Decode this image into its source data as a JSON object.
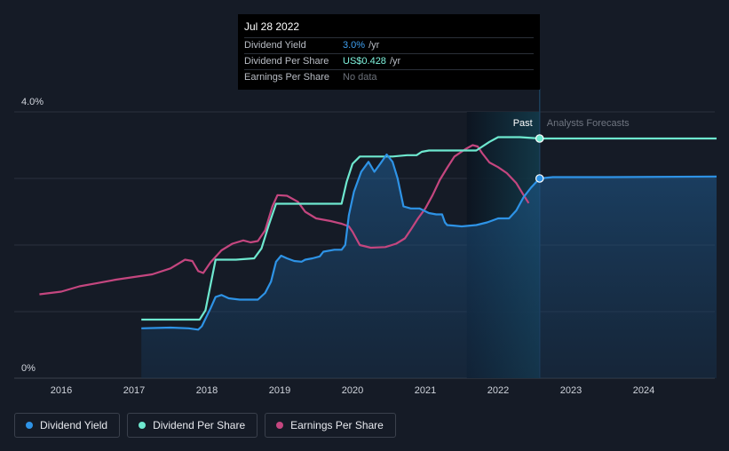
{
  "chart_data": {
    "type": "line",
    "x_ticks": [
      "2016",
      "2017",
      "2018",
      "2019",
      "2020",
      "2021",
      "2022",
      "2023",
      "2024"
    ],
    "y_ticks": [
      "0%",
      "4.0%"
    ],
    "ylim": [
      0,
      4.0
    ],
    "xlim": [
      2015.7,
      2025.0
    ],
    "past_label": "Past",
    "forecast_label": "Analysts Forecasts",
    "past_end": 2022.57,
    "forecast_shade_start": 2021.57,
    "series": [
      {
        "name": "Dividend Yield",
        "color": "#2e93e6",
        "points": [
          [
            2017.1,
            0.75
          ],
          [
            2017.5,
            0.76
          ],
          [
            2017.75,
            0.75
          ],
          [
            2017.88,
            0.73
          ],
          [
            2017.93,
            0.78
          ],
          [
            2018.05,
            1.05
          ],
          [
            2018.12,
            1.22
          ],
          [
            2018.2,
            1.25
          ],
          [
            2018.3,
            1.2
          ],
          [
            2018.45,
            1.18
          ],
          [
            2018.7,
            1.18
          ],
          [
            2018.8,
            1.28
          ],
          [
            2018.88,
            1.45
          ],
          [
            2018.95,
            1.75
          ],
          [
            2019.02,
            1.84
          ],
          [
            2019.1,
            1.8
          ],
          [
            2019.2,
            1.76
          ],
          [
            2019.3,
            1.75
          ],
          [
            2019.35,
            1.78
          ],
          [
            2019.45,
            1.8
          ],
          [
            2019.55,
            1.83
          ],
          [
            2019.6,
            1.9
          ],
          [
            2019.75,
            1.93
          ],
          [
            2019.85,
            1.93
          ],
          [
            2019.9,
            2.0
          ],
          [
            2019.95,
            2.45
          ],
          [
            2020.02,
            2.8
          ],
          [
            2020.12,
            3.1
          ],
          [
            2020.22,
            3.25
          ],
          [
            2020.3,
            3.1
          ],
          [
            2020.38,
            3.22
          ],
          [
            2020.47,
            3.36
          ],
          [
            2020.55,
            3.25
          ],
          [
            2020.62,
            3.0
          ],
          [
            2020.7,
            2.58
          ],
          [
            2020.8,
            2.55
          ],
          [
            2020.92,
            2.55
          ],
          [
            2021.05,
            2.48
          ],
          [
            2021.15,
            2.46
          ],
          [
            2021.23,
            2.46
          ],
          [
            2021.27,
            2.34
          ],
          [
            2021.3,
            2.3
          ],
          [
            2021.5,
            2.28
          ],
          [
            2021.7,
            2.3
          ],
          [
            2021.85,
            2.34
          ],
          [
            2022.0,
            2.4
          ],
          [
            2022.15,
            2.4
          ],
          [
            2022.25,
            2.52
          ],
          [
            2022.35,
            2.72
          ],
          [
            2022.45,
            2.86
          ],
          [
            2022.57,
            3.0
          ],
          [
            2022.75,
            3.02
          ],
          [
            2023.5,
            3.02
          ],
          [
            2025.0,
            3.03
          ]
        ]
      },
      {
        "name": "Dividend Per Share",
        "color": "#6ee8cf",
        "points": [
          [
            2017.1,
            0.88
          ],
          [
            2017.5,
            0.88
          ],
          [
            2017.9,
            0.88
          ],
          [
            2017.98,
            1.02
          ],
          [
            2018.05,
            1.4
          ],
          [
            2018.12,
            1.78
          ],
          [
            2018.4,
            1.78
          ],
          [
            2018.65,
            1.8
          ],
          [
            2018.75,
            1.95
          ],
          [
            2018.85,
            2.3
          ],
          [
            2018.95,
            2.62
          ],
          [
            2019.2,
            2.62
          ],
          [
            2019.5,
            2.62
          ],
          [
            2019.85,
            2.62
          ],
          [
            2019.92,
            2.95
          ],
          [
            2020.0,
            3.22
          ],
          [
            2020.1,
            3.33
          ],
          [
            2020.3,
            3.33
          ],
          [
            2020.55,
            3.33
          ],
          [
            2020.75,
            3.35
          ],
          [
            2020.88,
            3.35
          ],
          [
            2020.95,
            3.4
          ],
          [
            2021.05,
            3.42
          ],
          [
            2021.4,
            3.42
          ],
          [
            2021.7,
            3.42
          ],
          [
            2021.88,
            3.55
          ],
          [
            2022.0,
            3.62
          ],
          [
            2022.3,
            3.62
          ],
          [
            2022.57,
            3.6
          ],
          [
            2023.0,
            3.6
          ],
          [
            2025.0,
            3.6
          ]
        ]
      },
      {
        "name": "Earnings Per Share",
        "color": "#c4467f",
        "points": [
          [
            2015.7,
            1.26
          ],
          [
            2016.0,
            1.3
          ],
          [
            2016.25,
            1.38
          ],
          [
            2016.5,
            1.43
          ],
          [
            2016.75,
            1.48
          ],
          [
            2017.0,
            1.52
          ],
          [
            2017.25,
            1.56
          ],
          [
            2017.5,
            1.65
          ],
          [
            2017.7,
            1.78
          ],
          [
            2017.8,
            1.76
          ],
          [
            2017.88,
            1.61
          ],
          [
            2017.95,
            1.58
          ],
          [
            2018.05,
            1.74
          ],
          [
            2018.2,
            1.92
          ],
          [
            2018.35,
            2.02
          ],
          [
            2018.5,
            2.07
          ],
          [
            2018.6,
            2.04
          ],
          [
            2018.7,
            2.06
          ],
          [
            2018.8,
            2.22
          ],
          [
            2018.9,
            2.58
          ],
          [
            2018.97,
            2.75
          ],
          [
            2019.1,
            2.74
          ],
          [
            2019.25,
            2.65
          ],
          [
            2019.35,
            2.5
          ],
          [
            2019.5,
            2.4
          ],
          [
            2019.7,
            2.36
          ],
          [
            2019.85,
            2.32
          ],
          [
            2019.95,
            2.28
          ],
          [
            2020.0,
            2.2
          ],
          [
            2020.1,
            2.0
          ],
          [
            2020.25,
            1.96
          ],
          [
            2020.45,
            1.97
          ],
          [
            2020.6,
            2.02
          ],
          [
            2020.72,
            2.1
          ],
          [
            2020.8,
            2.23
          ],
          [
            2020.9,
            2.4
          ],
          [
            2021.0,
            2.55
          ],
          [
            2021.1,
            2.75
          ],
          [
            2021.2,
            2.98
          ],
          [
            2021.3,
            3.16
          ],
          [
            2021.4,
            3.33
          ],
          [
            2021.55,
            3.44
          ],
          [
            2021.65,
            3.5
          ],
          [
            2021.72,
            3.48
          ],
          [
            2021.78,
            3.38
          ],
          [
            2021.88,
            3.24
          ],
          [
            2022.0,
            3.17
          ],
          [
            2022.12,
            3.08
          ],
          [
            2022.25,
            2.93
          ],
          [
            2022.35,
            2.75
          ],
          [
            2022.42,
            2.63
          ]
        ]
      }
    ]
  },
  "tooltip": {
    "date": "Jul 28 2022",
    "rows": [
      {
        "label": "Dividend Yield",
        "value": "3.0%",
        "unit": "/yr"
      },
      {
        "label": "Dividend Per Share",
        "value": "US$0.428",
        "unit": "/yr"
      },
      {
        "label": "Earnings Per Share",
        "value": "No data"
      }
    ]
  },
  "legend": [
    {
      "label": "Dividend Yield",
      "color": "#2e93e6"
    },
    {
      "label": "Dividend Per Share",
      "color": "#6ee8cf"
    },
    {
      "label": "Earnings Per Share",
      "color": "#c4467f"
    }
  ]
}
